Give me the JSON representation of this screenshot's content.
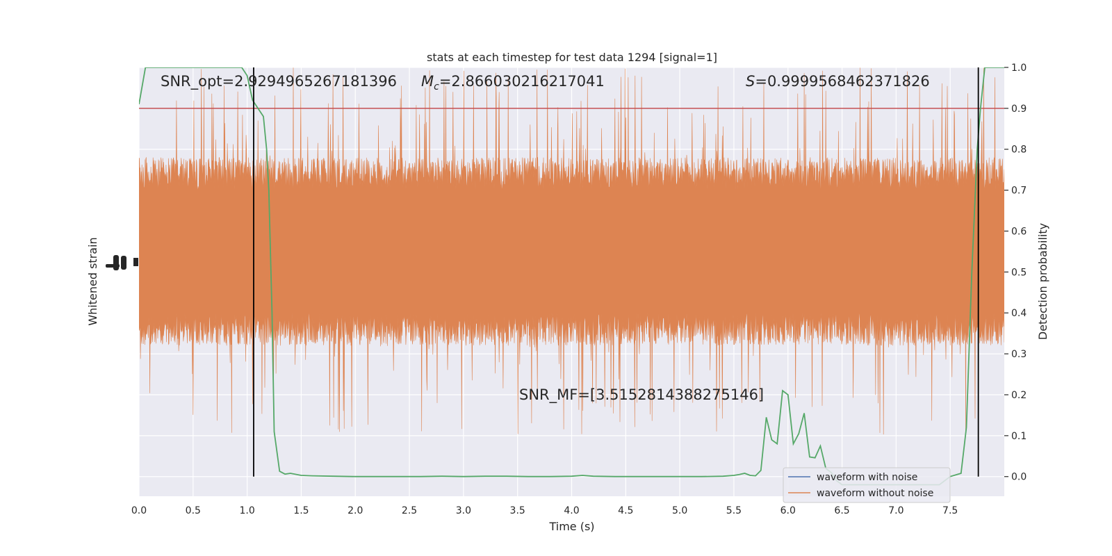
{
  "chart_data": {
    "type": "line",
    "title": "stats at each timestep for test data 1294 [signal=1]",
    "xlabel": "Time (s)",
    "ylabel_left": "Whitened strain",
    "ylabel_right": "Detection probability",
    "xlim": [
      0.0,
      8.0
    ],
    "ylim_right": [
      -0.048,
      1.0
    ],
    "x_ticks": [
      "0.0",
      "0.5",
      "1.0",
      "1.5",
      "2.0",
      "2.5",
      "3.0",
      "3.5",
      "4.0",
      "4.5",
      "5.0",
      "5.5",
      "6.0",
      "6.5",
      "7.0",
      "7.5"
    ],
    "y_ticks_right": [
      "0.0",
      "0.1",
      "0.2",
      "0.3",
      "0.4",
      "0.5",
      "0.6",
      "0.7",
      "0.8",
      "0.9",
      "1.0"
    ],
    "grid": true,
    "annotations": {
      "snr_opt": "SNR_opt=2.9294965267181396",
      "mc_symbol": "M",
      "mc_sub": "c",
      "mc_value": "=2.866030216217041",
      "s_symbol": "S",
      "s_value": "=0.9999568462371826",
      "snr_mf": "SNR_MF=[3.5152814388275146]"
    },
    "threshold": 0.9,
    "vlines": [
      1.06,
      7.76
    ],
    "legend": {
      "placement": "lower-right",
      "entries": [
        {
          "label": "waveform with noise",
          "color": "#4c72b0"
        },
        {
          "label": "waveform without noise",
          "color": "#dd8452"
        }
      ]
    },
    "noise_band": {
      "center": 0.55,
      "typical_half_width": 0.2,
      "max_half_width": 0.45,
      "color": "#dd8452"
    },
    "detection_probability": {
      "color": "#55a868",
      "x": [
        0.0,
        0.06,
        0.15,
        0.3,
        0.5,
        0.7,
        0.9,
        0.95,
        1.0,
        1.05,
        1.1,
        1.15,
        1.18,
        1.2,
        1.23,
        1.25,
        1.3,
        1.35,
        1.4,
        1.5,
        1.6,
        1.8,
        2.0,
        2.2,
        2.4,
        2.6,
        2.8,
        3.0,
        3.2,
        3.4,
        3.6,
        3.8,
        4.0,
        4.1,
        4.2,
        4.4,
        4.6,
        4.8,
        5.0,
        5.2,
        5.4,
        5.5,
        5.55,
        5.6,
        5.65,
        5.7,
        5.75,
        5.8,
        5.85,
        5.9,
        5.95,
        6.0,
        6.05,
        6.1,
        6.15,
        6.2,
        6.25,
        6.3,
        6.35,
        6.4,
        6.45,
        6.5,
        6.55,
        6.6,
        6.65,
        6.7,
        6.8,
        7.0,
        7.2,
        7.4,
        7.5,
        7.6,
        7.65,
        7.7,
        7.75,
        7.78,
        7.82,
        7.86,
        8.0
      ],
      "y": [
        0.91,
        1.0,
        1.0,
        1.0,
        1.0,
        1.0,
        1.0,
        1.0,
        0.98,
        0.92,
        0.9,
        0.88,
        0.8,
        0.7,
        0.4,
        0.11,
        0.013,
        0.006,
        0.008,
        0.003,
        0.002,
        0.001,
        0.0,
        0.0,
        0.0,
        0.0,
        0.001,
        0.0,
        0.001,
        0.001,
        0.0,
        0.0,
        0.001,
        0.003,
        0.001,
        0.0,
        0.0,
        0.0,
        0.0,
        0.0,
        0.001,
        0.003,
        0.005,
        0.008,
        0.003,
        0.002,
        0.015,
        0.145,
        0.09,
        0.08,
        0.21,
        0.2,
        0.08,
        0.105,
        0.155,
        0.048,
        0.046,
        0.075,
        0.02,
        0.01,
        -0.01,
        -0.02,
        -0.02,
        -0.02,
        -0.02,
        -0.02,
        -0.02,
        -0.02,
        -0.02,
        -0.02,
        0.0,
        0.008,
        0.12,
        0.5,
        0.8,
        0.9,
        1.0,
        1.0,
        1.0
      ]
    }
  }
}
